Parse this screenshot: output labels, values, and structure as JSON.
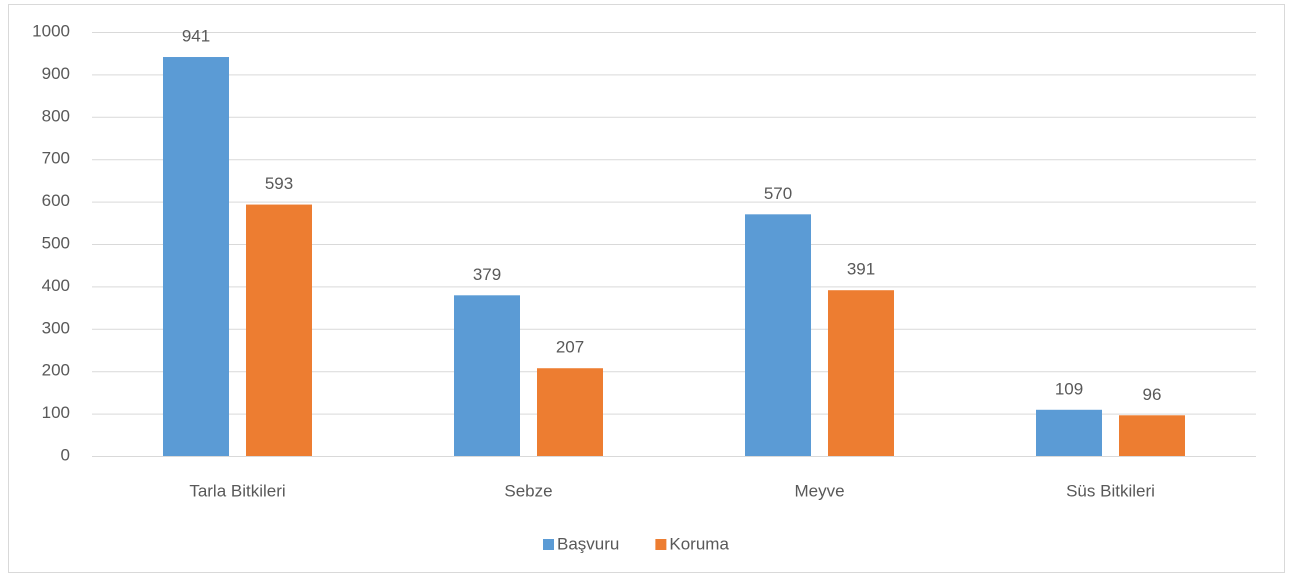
{
  "chart_data": {
    "type": "bar",
    "categories": [
      "Tarla Bitkileri",
      "Sebze",
      "Meyve",
      "Süs Bitkileri"
    ],
    "series": [
      {
        "name": "Başvuru",
        "color": "#5b9bd5",
        "values": [
          941,
          379,
          570,
          109
        ]
      },
      {
        "name": "Koruma",
        "color": "#ed7d31",
        "values": [
          593,
          207,
          391,
          96
        ]
      }
    ],
    "ylim": [
      0,
      1000
    ],
    "yticks": [
      0,
      100,
      200,
      300,
      400,
      500,
      600,
      700,
      800,
      900,
      1000
    ],
    "grid": true,
    "legend": "bottom"
  }
}
